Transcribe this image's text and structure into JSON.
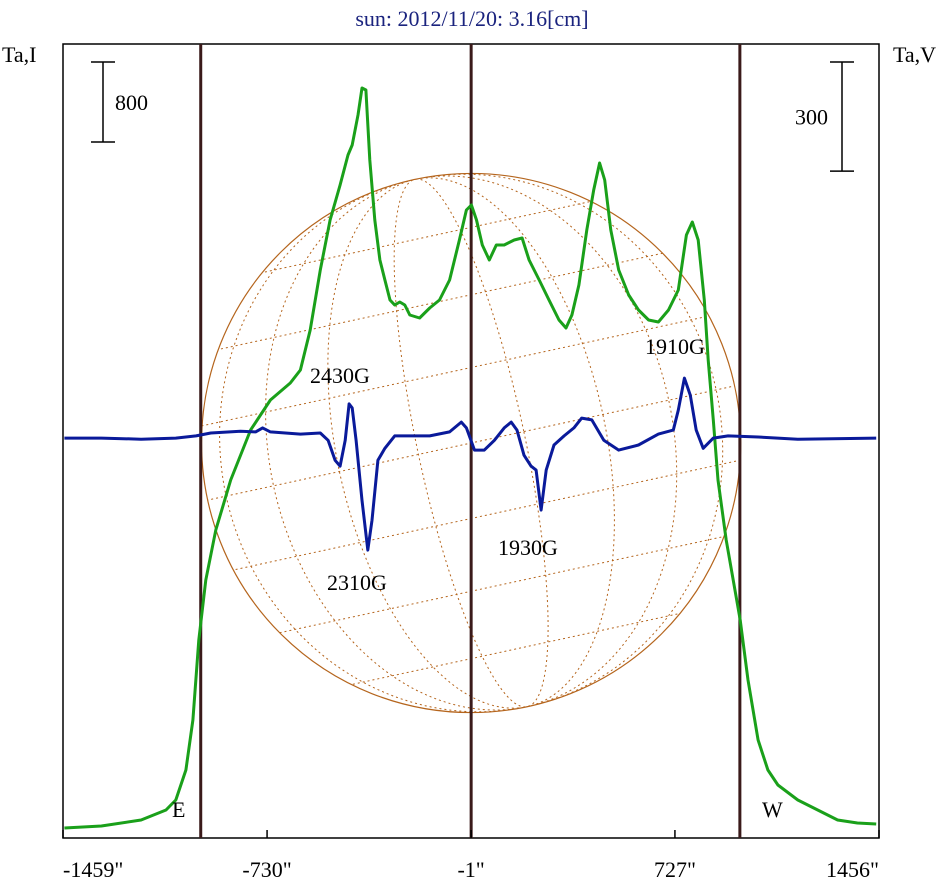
{
  "chart_data": {
    "type": "line",
    "title": "sun: 2012/11/20: 3.16[cm]",
    "y_label": "Ta,I",
    "y2_label": "Ta,V",
    "xlim": [
      -1459,
      1456
    ],
    "xticks": [
      {
        "value": -1459,
        "label": "-1459\""
      },
      {
        "value": -730,
        "label": "-730\""
      },
      {
        "value": -1,
        "label": "-1\""
      },
      {
        "value": 727,
        "label": "727\""
      },
      {
        "value": 1456,
        "label": "1456\""
      }
    ],
    "ylim": [
      0,
      7940
    ],
    "y2lim": [
      -1100,
      1084
    ],
    "scale_bar": 800,
    "scale_bar2": 300,
    "vlines": [
      -967,
      -1,
      959
    ],
    "series": [
      {
        "color": "#1aa01a",
        "x": [
          -1454,
          -1322,
          -1180,
          -1091,
          -1056,
          -1020,
          -995,
          -974,
          -949,
          -913,
          -860,
          -789,
          -718,
          -647,
          -611,
          -576,
          -540,
          -505,
          -469,
          -441,
          -426,
          -405,
          -391,
          -377,
          -363,
          -345,
          -327,
          -309,
          -291,
          -274,
          -256,
          -238,
          -220,
          -185,
          -149,
          -114,
          -78,
          -43,
          -18,
          0,
          18,
          39,
          64,
          89,
          117,
          153,
          181,
          206,
          242,
          277,
          313,
          338,
          359,
          384,
          412,
          437,
          458,
          476,
          498,
          526,
          562,
          597,
          633,
          668,
          704,
          739,
          768,
          789,
          810,
          832,
          846,
          864,
          881,
          910,
          935,
          960,
          988,
          1024,
          1059,
          1095,
          1166,
          1237,
          1308,
          1379,
          1446
        ],
        "values": [
          100,
          120,
          180,
          280,
          380,
          680,
          1180,
          1980,
          2580,
          3080,
          3580,
          4080,
          4380,
          4550,
          4680,
          5080,
          5680,
          6180,
          6530,
          6830,
          6930,
          7230,
          7500,
          7480,
          6780,
          6180,
          5780,
          5580,
          5380,
          5330,
          5360,
          5330,
          5230,
          5200,
          5300,
          5380,
          5580,
          5980,
          6280,
          6330,
          6180,
          5930,
          5780,
          5930,
          5930,
          5980,
          6000,
          5780,
          5580,
          5380,
          5180,
          5100,
          5230,
          5530,
          6080,
          6480,
          6750,
          6580,
          6080,
          5680,
          5430,
          5280,
          5180,
          5160,
          5280,
          5480,
          6030,
          6160,
          5980,
          5380,
          4780,
          4180,
          3580,
          2980,
          2580,
          2180,
          1580,
          980,
          680,
          530,
          380,
          280,
          180,
          150,
          140
        ]
      },
      {
        "color": "#0a1a9a",
        "axis": "y2",
        "x": [
          -1454,
          -1322,
          -1180,
          -1056,
          -984,
          -931,
          -825,
          -771,
          -746,
          -718,
          -611,
          -540,
          -512,
          -487,
          -469,
          -451,
          -437,
          -426,
          -412,
          -391,
          -370,
          -355,
          -334,
          -309,
          -274,
          -220,
          -149,
          -78,
          -36,
          -18,
          11,
          46,
          82,
          117,
          142,
          163,
          188,
          213,
          231,
          249,
          267,
          295,
          331,
          366,
          394,
          430,
          473,
          526,
          597,
          668,
          721,
          739,
          761,
          782,
          803,
          828,
          864,
          917,
          1024,
          1166,
          1446
        ],
        "values": [
          0,
          0,
          -3,
          0,
          6,
          14,
          19,
          17,
          28,
          17,
          11,
          14,
          -6,
          -61,
          -77,
          -6,
          94,
          83,
          -6,
          -171,
          -308,
          -226,
          -61,
          -28,
          6,
          6,
          6,
          17,
          44,
          28,
          -33,
          -33,
          -6,
          28,
          44,
          22,
          -47,
          -77,
          -88,
          -198,
          -88,
          -19,
          6,
          28,
          55,
          50,
          -6,
          -33,
          -19,
          11,
          22,
          77,
          165,
          118,
          22,
          -28,
          0,
          6,
          3,
          -3,
          0
        ]
      }
    ],
    "annotations": [
      "2430G",
      "1910G",
      "2310G",
      "1930G",
      "E",
      "W"
    ]
  }
}
